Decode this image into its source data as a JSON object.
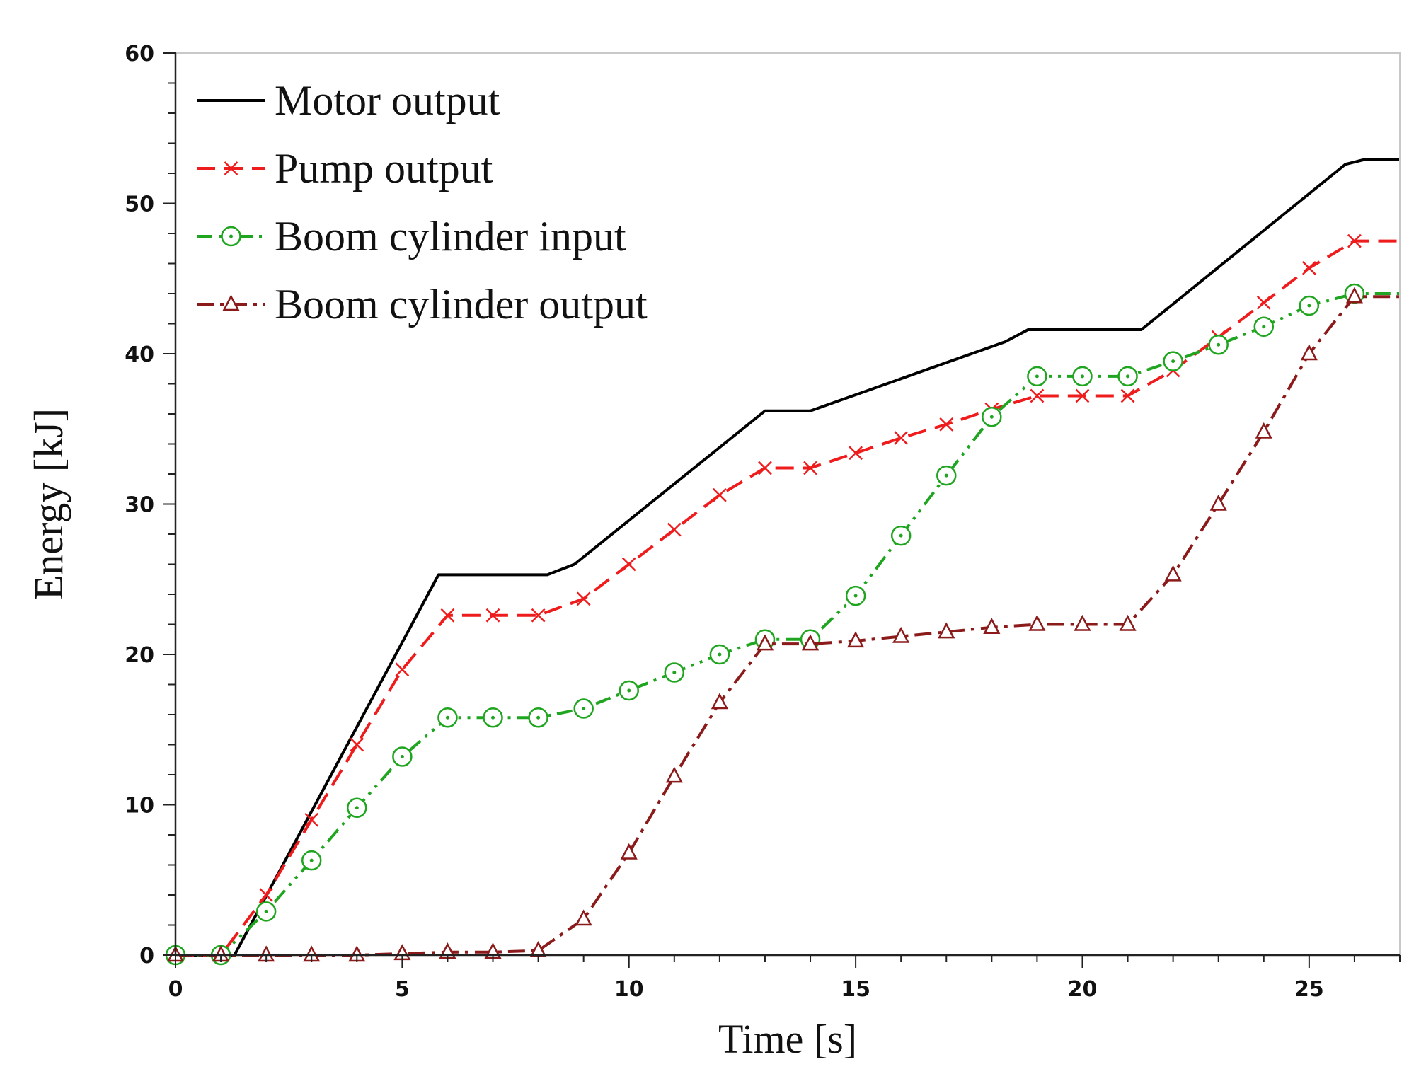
{
  "chart_data": {
    "type": "line",
    "xlabel": "Time [s]",
    "ylabel": "Energy [kJ]",
    "xlim": [
      0,
      27
    ],
    "ylim": [
      0,
      60
    ],
    "xticks": [
      "0",
      "5",
      "10",
      "15",
      "20",
      "25"
    ],
    "yticks": [
      "0",
      "10",
      "20",
      "30",
      "40",
      "50",
      "60"
    ],
    "legend_position": "top-left",
    "series": [
      {
        "name": "Motor output",
        "color": "#000000",
        "style": "solid",
        "marker": "none",
        "x": [
          0,
          1.3,
          5.8,
          8.2,
          8.8,
          13.0,
          14.0,
          18.3,
          18.8,
          21.3,
          25.8,
          26.2,
          27.0
        ],
        "y": [
          0,
          0,
          25.3,
          25.3,
          26.0,
          36.2,
          36.2,
          40.8,
          41.6,
          41.6,
          52.6,
          52.9,
          52.9
        ]
      },
      {
        "name": "Pump output",
        "color": "#ee1c1c",
        "style": "dash",
        "marker": "x",
        "x": [
          0,
          1,
          2,
          3,
          4,
          5,
          6,
          7,
          8,
          9,
          10,
          11,
          12,
          13,
          14,
          15,
          16,
          17,
          18,
          19,
          20,
          21,
          22,
          23,
          24,
          25,
          26,
          27
        ],
        "y": [
          0,
          0,
          4.0,
          9.0,
          14.0,
          19.0,
          22.6,
          22.6,
          22.6,
          23.7,
          26.0,
          28.3,
          30.6,
          32.4,
          32.4,
          33.4,
          34.4,
          35.3,
          36.3,
          37.2,
          37.2,
          37.2,
          38.9,
          41.1,
          43.4,
          45.7,
          47.5,
          47.5
        ]
      },
      {
        "name": "Boom cylinder input",
        "color": "#1fa51f",
        "style": "dashdotdot",
        "marker": "circle-dot",
        "x": [
          0,
          1,
          2,
          3,
          4,
          5,
          6,
          7,
          8,
          9,
          10,
          11,
          12,
          13,
          14,
          15,
          16,
          17,
          18,
          19,
          20,
          21,
          22,
          23,
          24,
          25,
          26,
          27
        ],
        "y": [
          0,
          0,
          2.9,
          6.3,
          9.8,
          13.2,
          15.8,
          15.8,
          15.8,
          16.4,
          17.6,
          18.8,
          20.0,
          21.0,
          21.0,
          23.9,
          27.9,
          31.9,
          35.8,
          38.5,
          38.5,
          38.5,
          39.5,
          40.6,
          41.8,
          43.2,
          44.0,
          44.0
        ]
      },
      {
        "name": "Boom cylinder output",
        "color": "#8b1a1a",
        "style": "dashdot",
        "marker": "triangle",
        "x": [
          0,
          1,
          2,
          3,
          4,
          5,
          6,
          7,
          8,
          9,
          10,
          11,
          12,
          13,
          14,
          15,
          16,
          17,
          18,
          19,
          20,
          21,
          22,
          23,
          24,
          25,
          26,
          27
        ],
        "y": [
          0,
          0,
          0,
          0,
          0,
          0.1,
          0.2,
          0.2,
          0.3,
          2.4,
          6.8,
          11.9,
          16.8,
          20.7,
          20.7,
          20.9,
          21.2,
          21.5,
          21.8,
          22.0,
          22.0,
          22.0,
          25.3,
          30.0,
          34.8,
          40.0,
          43.8,
          43.8
        ]
      }
    ]
  }
}
